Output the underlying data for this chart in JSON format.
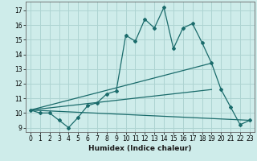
{
  "xlabel": "Humidex (Indice chaleur)",
  "bg_color": "#ceecea",
  "grid_color": "#aed4d2",
  "line_color": "#1a6b6b",
  "xlim": [
    -0.5,
    23.5
  ],
  "ylim": [
    8.7,
    17.6
  ],
  "yticks": [
    9,
    10,
    11,
    12,
    13,
    14,
    15,
    16,
    17
  ],
  "xticks": [
    0,
    1,
    2,
    3,
    4,
    5,
    6,
    7,
    8,
    9,
    10,
    11,
    12,
    13,
    14,
    15,
    16,
    17,
    18,
    19,
    20,
    21,
    22,
    23
  ],
  "series1_x": [
    0,
    1,
    2,
    3,
    4,
    5,
    6,
    7,
    8,
    9,
    10,
    11,
    12,
    13,
    14,
    15,
    16,
    17,
    18,
    19,
    20,
    21,
    22,
    23
  ],
  "series1_y": [
    10.2,
    10.0,
    10.0,
    9.5,
    9.0,
    9.7,
    10.5,
    10.7,
    11.3,
    11.5,
    15.3,
    14.9,
    16.4,
    15.8,
    17.2,
    14.4,
    15.8,
    16.1,
    14.8,
    13.4,
    11.6,
    10.4,
    9.2,
    9.5
  ],
  "series2_x": [
    0,
    23
  ],
  "series2_y": [
    10.2,
    9.5
  ],
  "series3_x": [
    0,
    19
  ],
  "series3_y": [
    10.2,
    13.4
  ],
  "series4_x": [
    0,
    19
  ],
  "series4_y": [
    10.2,
    11.6
  ]
}
